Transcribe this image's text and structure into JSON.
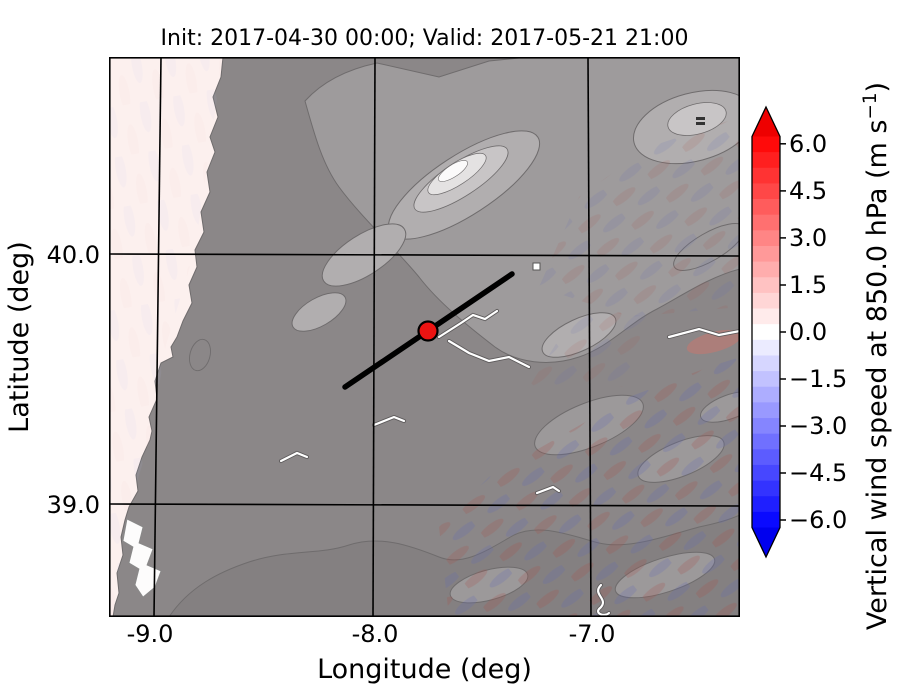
{
  "title": "Init: 2017-04-30 00:00; Valid: 2017-05-21 21:00",
  "axes": {
    "xlabel": "Longitude (deg)",
    "ylabel": "Latitude (deg)",
    "x_ticks": [
      "-9.0",
      "-8.0",
      "-7.0"
    ],
    "y_ticks": [
      "40.0",
      "39.0"
    ]
  },
  "colorbar": {
    "label_main": "Vertical wind speed at 850.0 hPa (m s",
    "label_sup": "−1",
    "label_close": ")",
    "ticks": [
      "6.0",
      "4.5",
      "3.0",
      "1.5",
      "0.0",
      "−1.5",
      "−3.0",
      "−4.5",
      "−6.0"
    ],
    "extend_over_color": "#ee0000",
    "extend_under_color": "#0000ee",
    "band_colors": [
      "#ff0a0a",
      "#ff1f1f",
      "#ff3333",
      "#ff4747",
      "#ff5c5c",
      "#ff7070",
      "#ff8585",
      "#ff9999",
      "#ffadad",
      "#ffc2c2",
      "#ffd6d6",
      "#ffebeb",
      "#ffffff",
      "#ebebff",
      "#d6d6ff",
      "#c2c2ff",
      "#adadff",
      "#9999ff",
      "#8585ff",
      "#7070ff",
      "#5c5cff",
      "#4747ff",
      "#3333ff",
      "#1f1fff",
      "#0a0aff"
    ]
  },
  "map": {
    "ocean_color": "#fcf0ee",
    "land_color": "#8b8788",
    "marker_color": "#ec1312",
    "cross_section_color": "#000000"
  },
  "chart_data": {
    "type": "heatmap",
    "subtype": "geographic map with terrain shading",
    "title": "Init: 2017-04-30 00:00; Valid: 2017-05-21 21:00",
    "xlabel": "Longitude (deg)",
    "ylabel": "Latitude (deg)",
    "xlim": [
      -9.2,
      -6.3
    ],
    "ylim": [
      38.55,
      40.8
    ],
    "x_ticks": [
      -9.0,
      -8.0,
      -7.0
    ],
    "y_ticks": [
      40.0,
      39.0
    ],
    "grid": true,
    "colorbar": {
      "label": "Vertical wind speed at 850.0 hPa (m s⁻¹)",
      "ticks": [
        6.0,
        4.5,
        3.0,
        1.5,
        0.0,
        -1.5,
        -3.0,
        -4.5,
        -6.0
      ],
      "vmin": -6.25,
      "vmax": 6.25,
      "band_step": 0.5,
      "colormap": "blue-white-red",
      "extend": "both"
    },
    "field_summary": "Vertical wind speed mostly near 0 m/s; weak alternating positive/negative NE-SW wave bands (about ±0.5 to ±1.5 m/s) over mountains in the southeast and northeast; near-zero pale values over the Atlantic west of the coastline; grayscale topography of central Portugal shown beneath the field",
    "annotations": {
      "marker": {
        "type": "point",
        "lon": -7.75,
        "lat": 39.7,
        "color": "#ec1312",
        "edge_color": "#000000"
      },
      "cross_section_line": {
        "lon": [
          -8.13,
          -7.36
        ],
        "lat": [
          39.47,
          39.92
        ],
        "color": "#000000"
      }
    }
  }
}
